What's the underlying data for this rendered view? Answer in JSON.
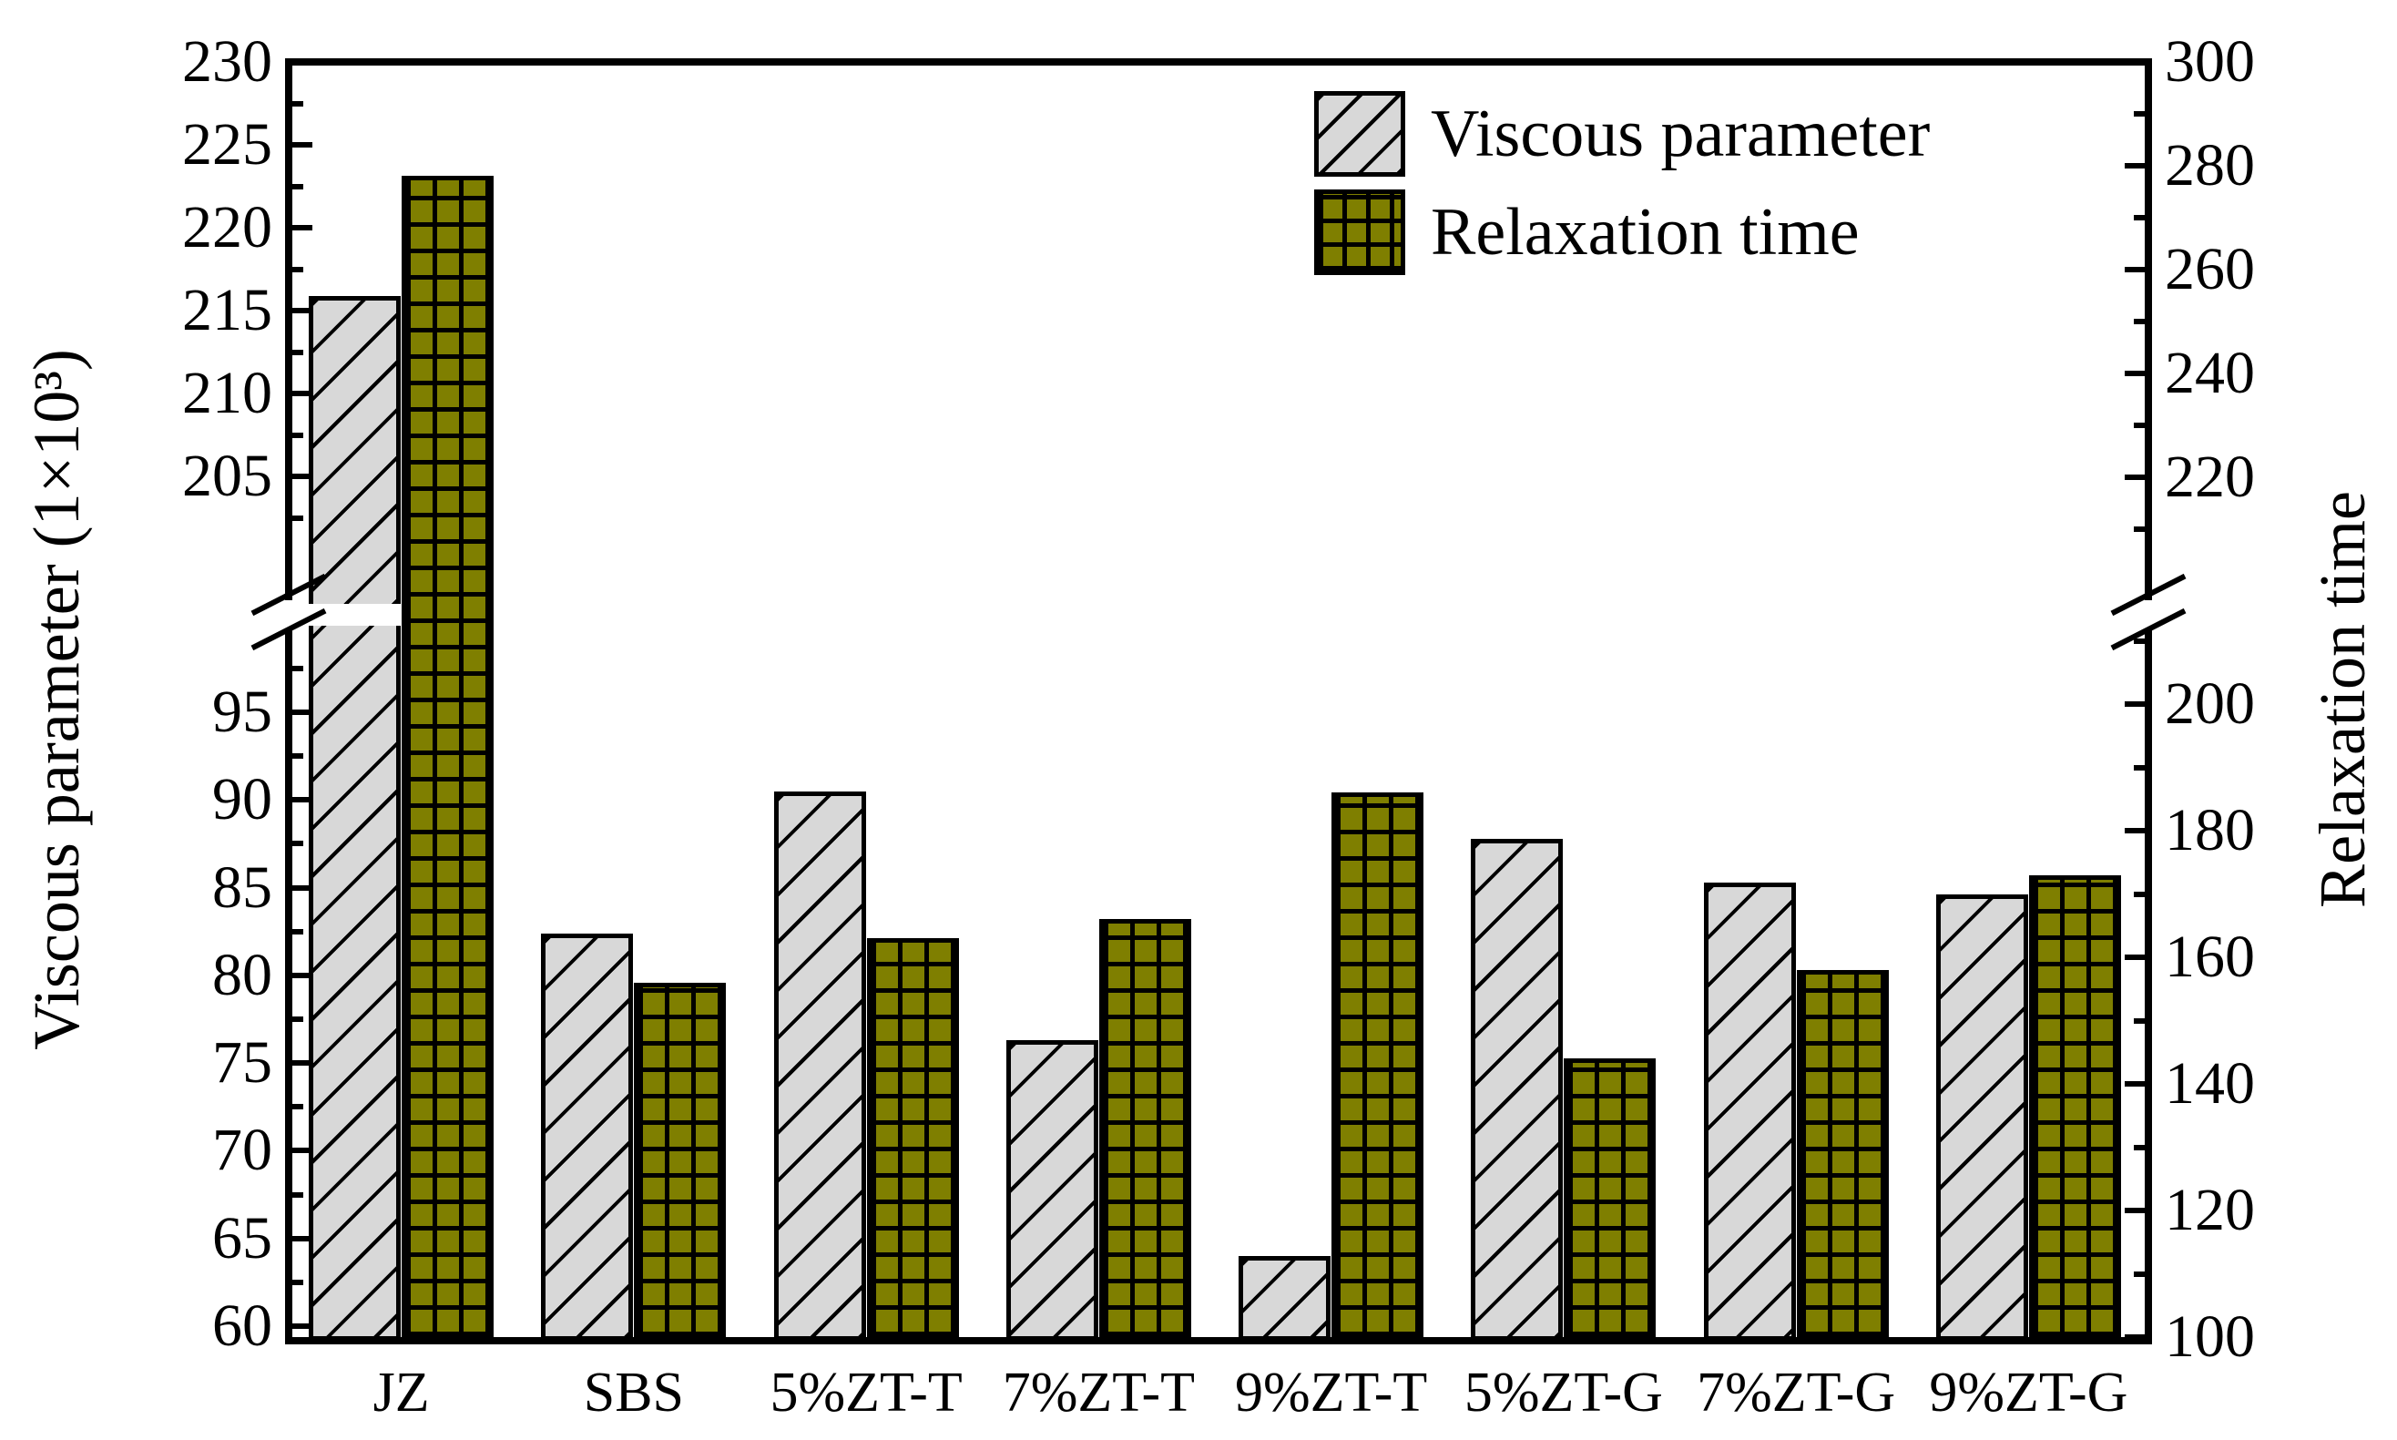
{
  "chart_data": {
    "type": "bar",
    "title": "",
    "categories": [
      "JZ",
      "SBS",
      "5%ZT-T",
      "7%ZT-T",
      "9%ZT-T",
      "5%ZT-G",
      "7%ZT-G",
      "9%ZT-G"
    ],
    "series": [
      {
        "name": "Viscous parameter",
        "axis": "left",
        "color": "#d8d8d8",
        "hatch": "diagonal",
        "values": [
          215.9,
          82.4,
          90.5,
          76.3,
          64.0,
          87.8,
          85.3,
          84.6
        ]
      },
      {
        "name": "Relaxation time",
        "axis": "right",
        "color": "#7f7f00",
        "hatch": "grid",
        "values": [
          278,
          156,
          163,
          166,
          186,
          144,
          158,
          173
        ]
      }
    ],
    "left_axis": {
      "label": "Viscous parameter (1×10³)",
      "upper_segment": {
        "range": [
          205,
          230
        ],
        "major_ticks": [
          230,
          225,
          220,
          215,
          210,
          205
        ],
        "minor_ticks": [
          227.5,
          222.5,
          217.5,
          212.5,
          207.5,
          202.5
        ]
      },
      "lower_segment": {
        "range": [
          60,
          95
        ],
        "major_ticks": [
          95,
          90,
          85,
          80,
          75,
          70,
          65,
          60
        ],
        "minor_ticks": [
          97.5,
          92.5,
          87.5,
          82.5,
          77.5,
          72.5,
          67.5,
          62.5
        ]
      }
    },
    "right_axis": {
      "label": "Relaxation time",
      "upper_segment": {
        "range": [
          220,
          300
        ],
        "major_ticks": [
          300,
          280,
          260,
          240,
          220
        ],
        "minor_ticks": [
          290,
          270,
          250,
          230,
          210
        ]
      },
      "lower_segment": {
        "range": [
          100,
          200
        ],
        "major_ticks": [
          200,
          180,
          160,
          140,
          120,
          100
        ],
        "minor_ticks": [
          210,
          190,
          170,
          150,
          130,
          110
        ]
      }
    },
    "broken_axis": true,
    "grid": false,
    "legend_position": "top-right-inside",
    "legend": [
      "Viscous parameter",
      "Relaxation time"
    ]
  }
}
